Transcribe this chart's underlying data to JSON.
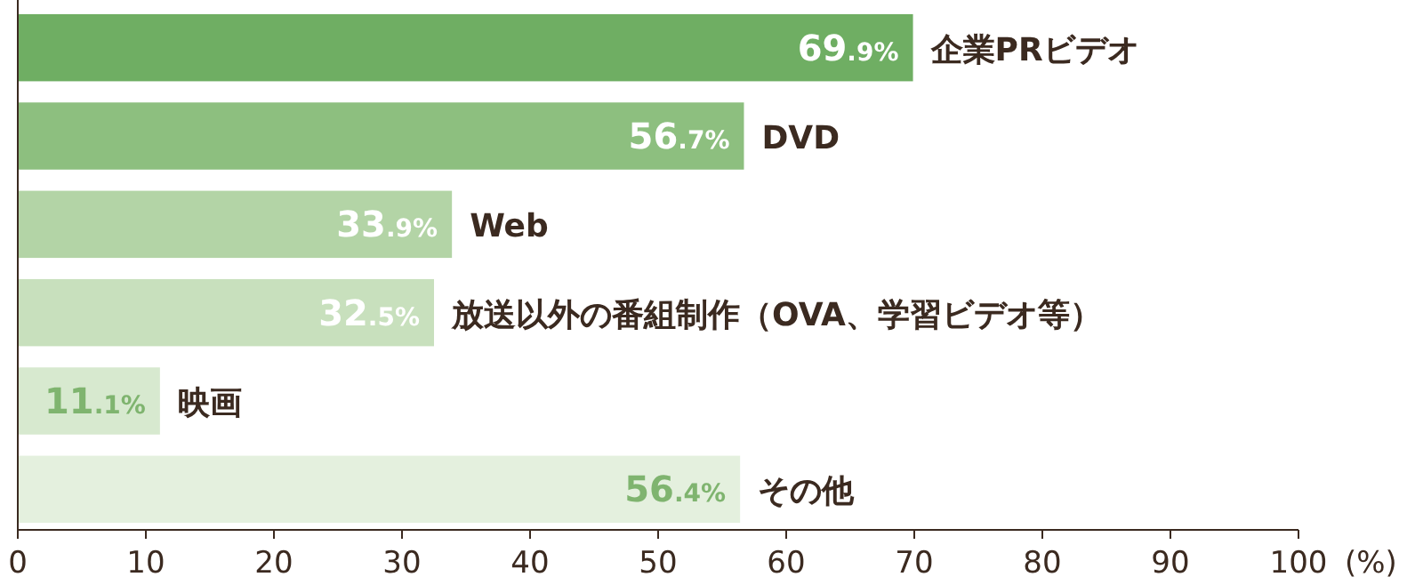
{
  "chart_data": {
    "type": "bar",
    "orientation": "horizontal",
    "categories": [
      "企業PRビデオ",
      "DVD",
      "Web",
      "放送以外の番組制作（OVA、学習ビデオ等）",
      "映画",
      "その他"
    ],
    "values": [
      69.9,
      56.7,
      33.9,
      32.5,
      11.1,
      56.4
    ],
    "colors": [
      "#6fae63",
      "#8dbf7f",
      "#b3d4a6",
      "#c8e0bd",
      "#d7e9cf",
      "#e4f0de"
    ],
    "value_labels": [
      "69.9%",
      "56.7%",
      "33.9%",
      "32.5%",
      "11.1%",
      "56.4%"
    ],
    "xlim": [
      0,
      100
    ],
    "xticks": [
      0,
      10,
      20,
      30,
      40,
      50,
      60,
      70,
      80,
      90,
      100
    ],
    "xlabel": "(%)"
  }
}
